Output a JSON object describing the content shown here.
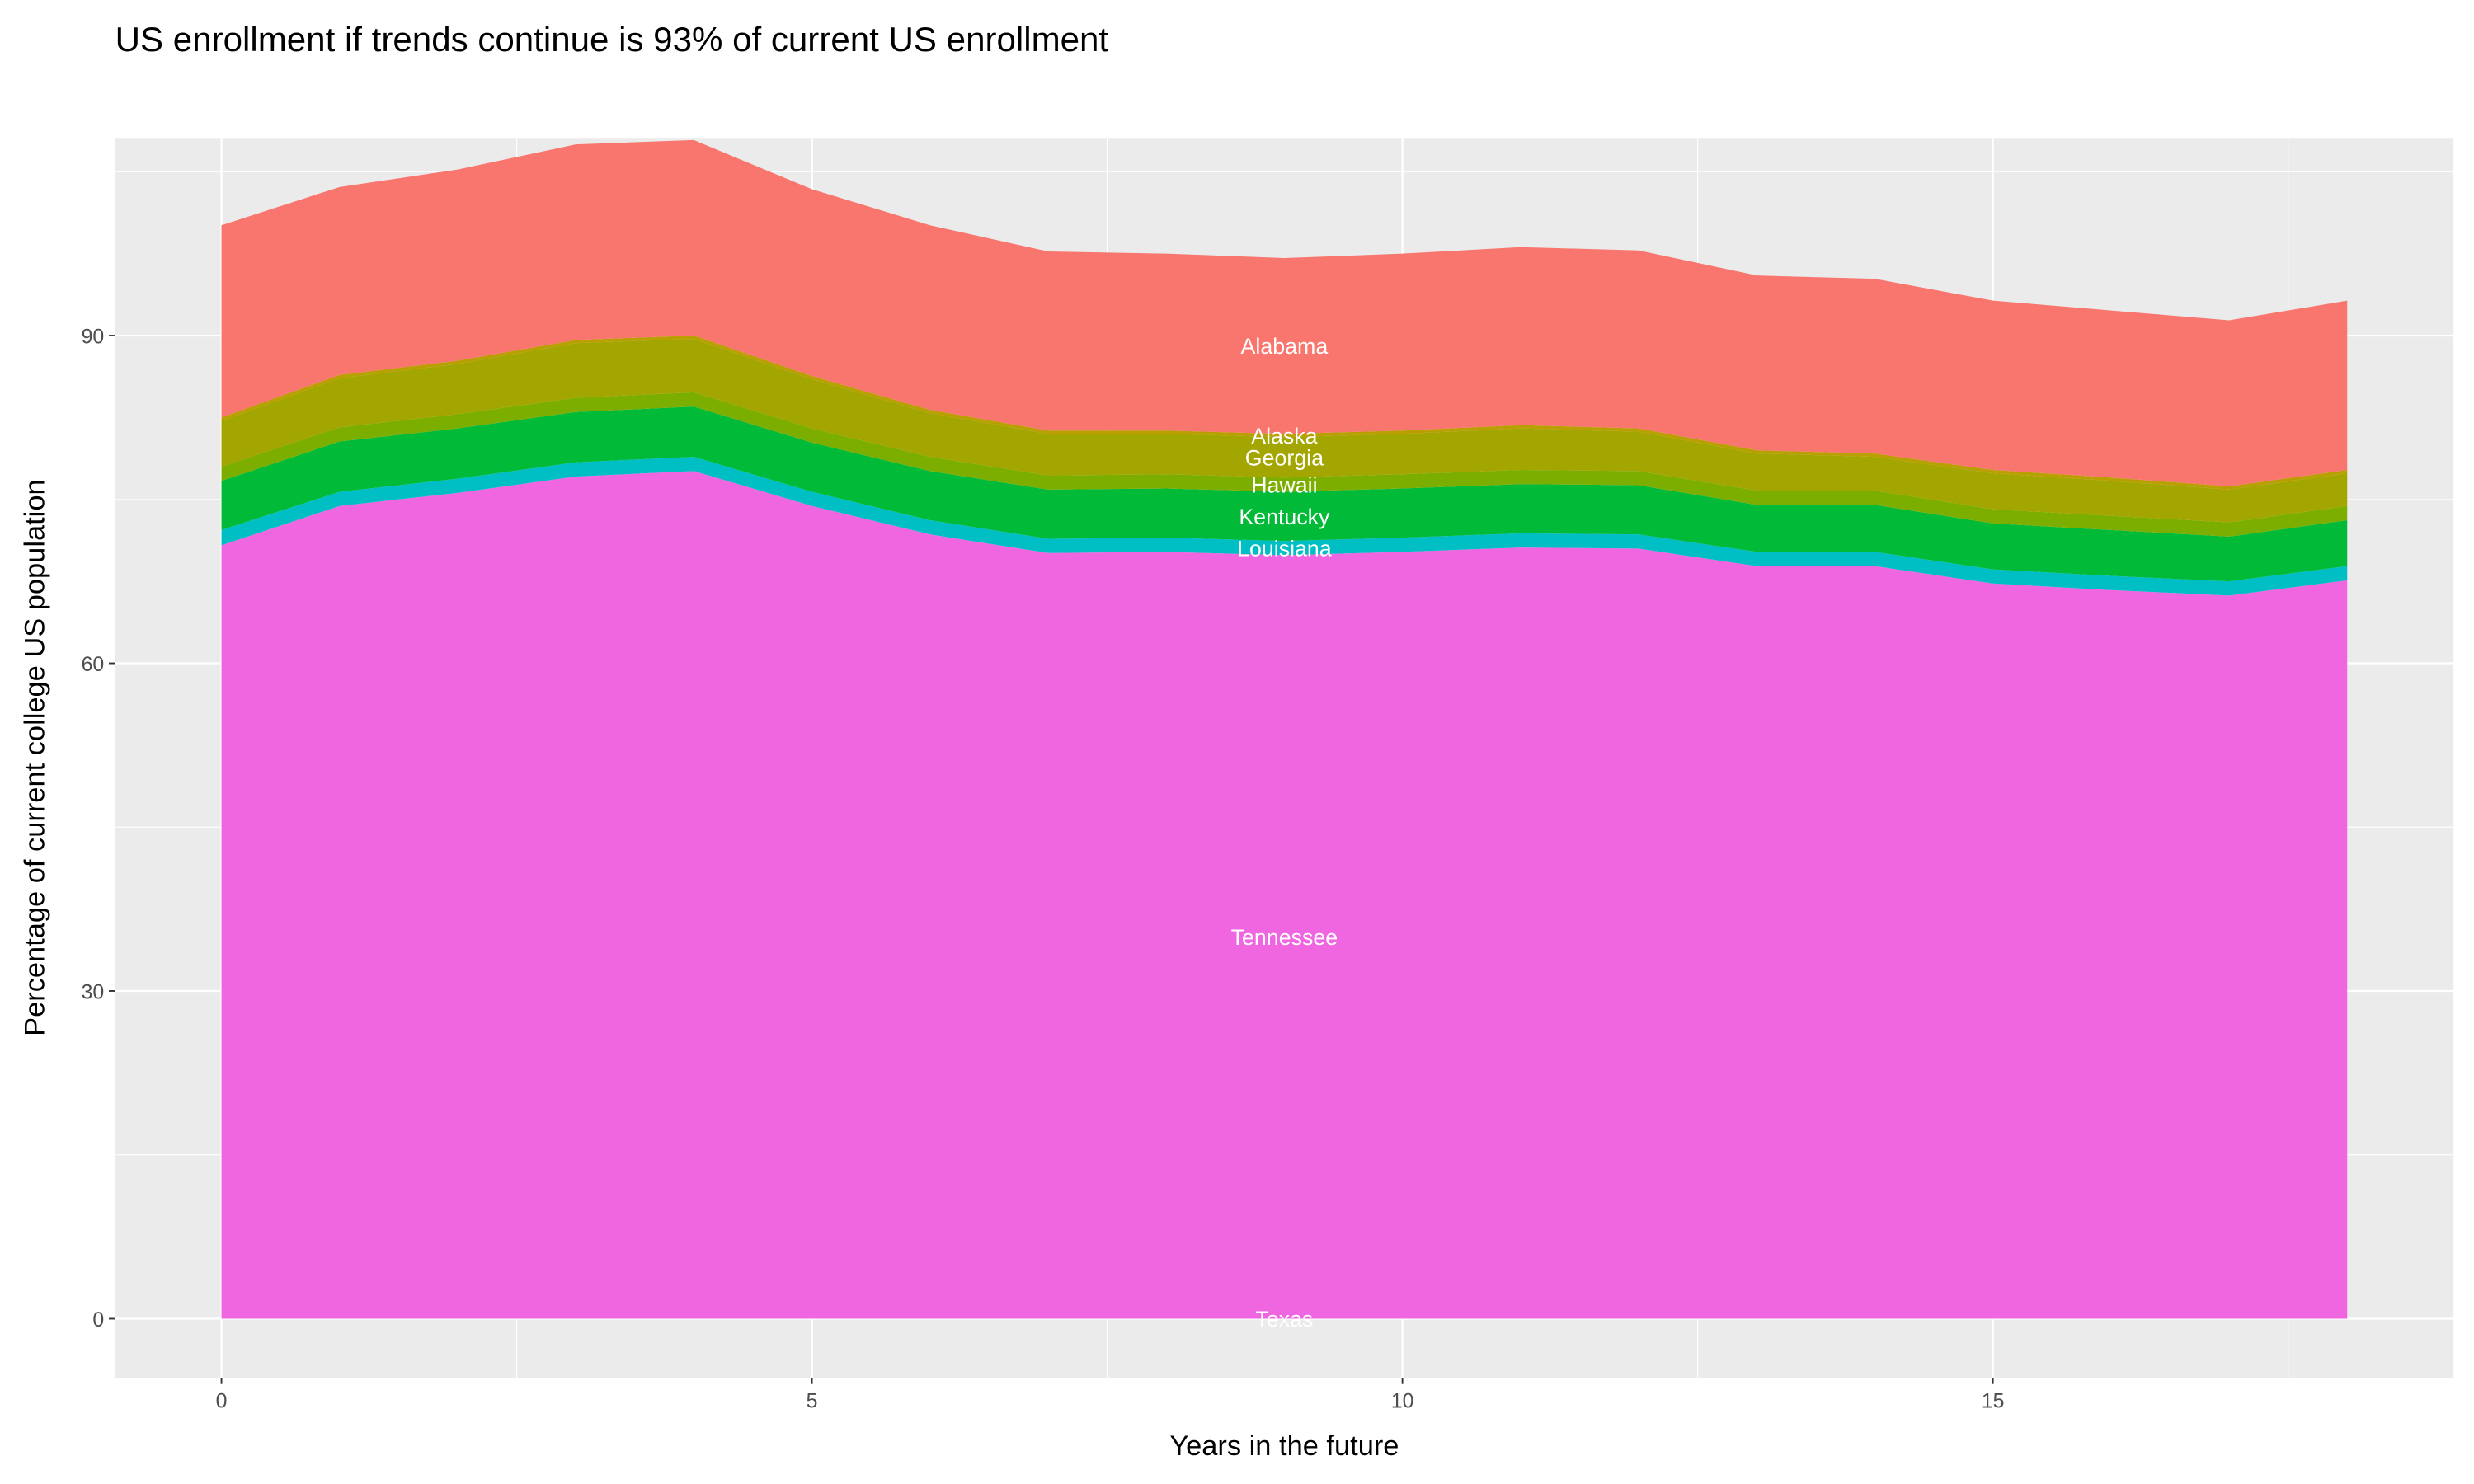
{
  "chart_data": {
    "type": "area",
    "stacked": true,
    "title": "US enrollment if trends continue is 93% of current US enrollment",
    "xlabel": "Years in the future",
    "ylabel": "Percentage of current college US population",
    "xlim": [
      -0.9,
      18.9
    ],
    "ylim": [
      -5.4,
      108.1
    ],
    "x_ticks": [
      0,
      5,
      10,
      15
    ],
    "y_ticks": [
      0,
      30,
      60,
      90
    ],
    "grid": true,
    "legend": "none",
    "label_x": 9,
    "x": [
      0,
      1,
      2,
      3,
      4,
      5,
      6,
      7,
      8,
      9,
      10,
      11,
      12,
      13,
      14,
      15,
      16,
      17,
      18
    ],
    "series": [
      {
        "name": "Texas",
        "color": "#FF61CC",
        "values": [
          0,
          0,
          0,
          0,
          0,
          0,
          0,
          0,
          0,
          0,
          0,
          0,
          0,
          0,
          0,
          0,
          0,
          0,
          0
        ]
      },
      {
        "name": "Tennessee",
        "color": "#F066E0",
        "values": [
          70.8,
          74.4,
          75.6,
          77.1,
          77.6,
          74.4,
          71.8,
          70.1,
          70.2,
          69.9,
          70.2,
          70.6,
          70.5,
          68.9,
          68.9,
          67.3,
          66.7,
          66.2,
          67.6
        ]
      },
      {
        "name": "Louisiana",
        "color": "#00BFC4",
        "values": [
          1.4,
          1.3,
          1.3,
          1.3,
          1.3,
          1.3,
          1.3,
          1.3,
          1.3,
          1.3,
          1.3,
          1.3,
          1.3,
          1.3,
          1.3,
          1.3,
          1.3,
          1.3,
          1.3
        ]
      },
      {
        "name": "Kentucky",
        "color": "#00BA38",
        "values": [
          4.5,
          4.6,
          4.6,
          4.6,
          4.6,
          4.5,
          4.5,
          4.5,
          4.5,
          4.5,
          4.5,
          4.5,
          4.5,
          4.3,
          4.3,
          4.2,
          4.2,
          4.1,
          4.2
        ]
      },
      {
        "name": "Hawaii",
        "color": "#7CAE00",
        "values": [
          1.3,
          1.3,
          1.3,
          1.3,
          1.3,
          1.3,
          1.3,
          1.3,
          1.3,
          1.3,
          1.3,
          1.3,
          1.3,
          1.3,
          1.3,
          1.3,
          1.3,
          1.3,
          1.3
        ]
      },
      {
        "name": "Georgia",
        "color": "#A3A500",
        "values": [
          4.2,
          4.5,
          4.6,
          5.0,
          4.9,
          4.5,
          4.0,
          3.8,
          3.7,
          3.7,
          3.7,
          3.8,
          3.6,
          3.4,
          3.1,
          3.3,
          3.2,
          3.0,
          3.0
        ]
      },
      {
        "name": "Alaska",
        "color": "#B9A000",
        "values": [
          0.3,
          0.3,
          0.3,
          0.3,
          0.3,
          0.3,
          0.3,
          0.3,
          0.3,
          0.3,
          0.3,
          0.3,
          0.3,
          0.3,
          0.3,
          0.3,
          0.3,
          0.3,
          0.3
        ]
      },
      {
        "name": "Alabama",
        "color": "#F8766D",
        "values": [
          17.6,
          17.2,
          17.5,
          17.9,
          17.9,
          17.1,
          16.9,
          16.4,
          16.2,
          16.1,
          16.2,
          16.3,
          16.3,
          16.0,
          16.0,
          15.5,
          15.3,
          15.2,
          15.5
        ]
      }
    ]
  }
}
